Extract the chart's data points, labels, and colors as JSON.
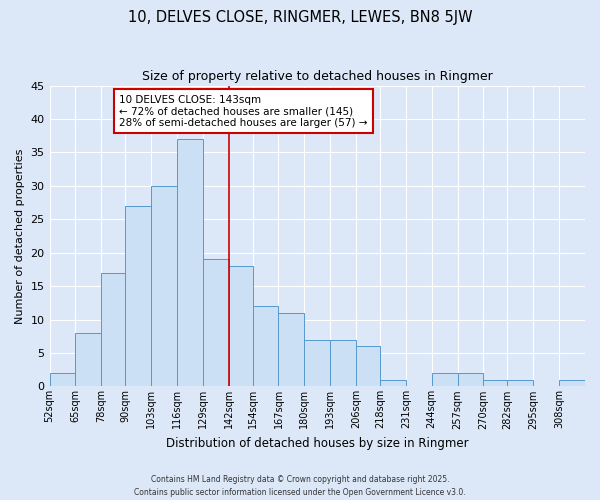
{
  "title": "10, DELVES CLOSE, RINGMER, LEWES, BN8 5JW",
  "subtitle": "Size of property relative to detached houses in Ringmer",
  "xlabel": "Distribution of detached houses by size in Ringmer",
  "ylabel": "Number of detached properties",
  "bar_labels": [
    "52sqm",
    "65sqm",
    "78sqm",
    "90sqm",
    "103sqm",
    "116sqm",
    "129sqm",
    "142sqm",
    "154sqm",
    "167sqm",
    "180sqm",
    "193sqm",
    "206sqm",
    "218sqm",
    "231sqm",
    "244sqm",
    "257sqm",
    "270sqm",
    "282sqm",
    "295sqm",
    "308sqm"
  ],
  "bar_values": [
    2,
    8,
    17,
    27,
    30,
    37,
    19,
    18,
    12,
    11,
    7,
    7,
    6,
    1,
    0,
    2,
    2,
    1,
    1,
    0,
    1
  ],
  "bin_edges": [
    52,
    65,
    78,
    90,
    103,
    116,
    129,
    142,
    154,
    167,
    180,
    193,
    206,
    218,
    231,
    244,
    257,
    270,
    282,
    295,
    308,
    321
  ],
  "bar_fill_color": "#cce0f5",
  "bar_edge_color": "#5599cc",
  "vline_x": 142,
  "vline_color": "#cc0000",
  "ylim": [
    0,
    45
  ],
  "yticks": [
    0,
    5,
    10,
    15,
    20,
    25,
    30,
    35,
    40,
    45
  ],
  "annotation_title": "10 DELVES CLOSE: 143sqm",
  "annotation_line1": "← 72% of detached houses are smaller (145)",
  "annotation_line2": "28% of semi-detached houses are larger (57) →",
  "annotation_box_color": "#cc0000",
  "bg_color": "#dce8f8",
  "grid_color": "#ffffff",
  "footer1": "Contains HM Land Registry data © Crown copyright and database right 2025.",
  "footer2": "Contains public sector information licensed under the Open Government Licence v3.0."
}
